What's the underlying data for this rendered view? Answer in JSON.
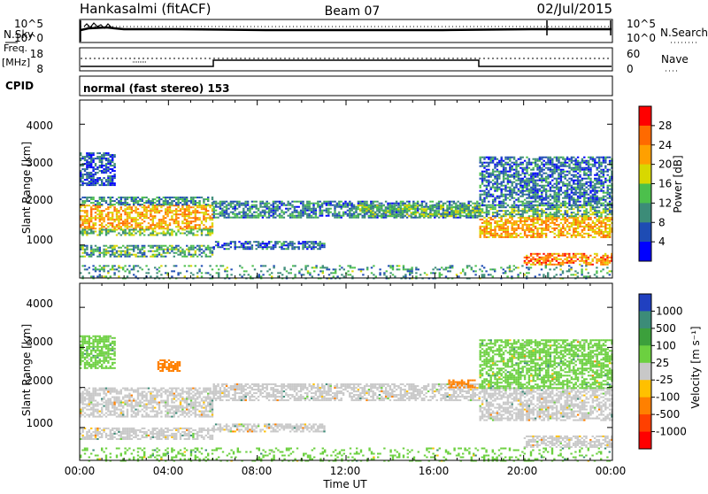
{
  "header": {
    "station": "Hankasalmi (fitACF)",
    "beam": "Beam 07",
    "date": "02/Jul/2015"
  },
  "top_strips": {
    "nsky_label": "N.Sky",
    "nsky_ticks": [
      "10^5",
      "10^0"
    ],
    "nsearch_label": "N.Search",
    "nsearch_ticks": [
      "10^5",
      "10^0"
    ],
    "freq_label_1": "Freq.",
    "freq_label_2": "[MHz]",
    "freq_ticks": [
      "18",
      "8"
    ],
    "nave_label": "Nave",
    "nave_ticks": [
      "60",
      "0"
    ],
    "cpid_label": "CPID",
    "cpid_text": "normal (fast stereo) 153"
  },
  "x_axis": {
    "label": "Time UT",
    "ticks": [
      "00:00",
      "04:00",
      "08:00",
      "12:00",
      "16:00",
      "20:00",
      "00:00"
    ]
  },
  "power_panel": {
    "ylabel": "Slant Range [km]",
    "yticks": [
      "4000",
      "3000",
      "2000",
      "1000"
    ],
    "cbar_label": "Power [dB]",
    "cbar_ticks": [
      "28",
      "24",
      "20",
      "16",
      "12",
      "8",
      "4"
    ],
    "cbar_colors": [
      "#ff0000",
      "#ff6a00",
      "#ffa000",
      "#d8d800",
      "#4cc04c",
      "#3c8c78",
      "#1e4cb4",
      "#0000ff"
    ]
  },
  "velocity_panel": {
    "ylabel": "Slant Range [km]",
    "yticks": [
      "4000",
      "3000",
      "2000",
      "1000"
    ],
    "cbar_label": "Velocity [m s⁻¹]",
    "cbar_ticks": [
      "1000",
      "500",
      "100",
      "25",
      "-25",
      "-100",
      "-500",
      "-1000"
    ],
    "cbar_colors": [
      "#2040c0",
      "#3c8c78",
      "#3ca03c",
      "#6cd040",
      "#c8c8c8",
      "#ffc000",
      "#ff8000",
      "#ff4000",
      "#ff0000"
    ]
  },
  "chart_data": [
    {
      "type": "heatmap",
      "title": "Power",
      "xlabel": "Time UT",
      "ylabel": "Slant Range [km]",
      "xlim": [
        0,
        24
      ],
      "ylim": [
        180,
        4600
      ],
      "colorbar": "Power [dB]",
      "colorbar_range": [
        0,
        32
      ],
      "bands": [
        {
          "t0": 0.0,
          "t1": 6.0,
          "r0": 1400,
          "r1": 2000,
          "level": 22
        },
        {
          "t0": 0.0,
          "t1": 6.0,
          "r0": 1250,
          "r1": 1400,
          "level": 14
        },
        {
          "t0": 0.0,
          "t1": 6.0,
          "r0": 2000,
          "r1": 2200,
          "level": 10
        },
        {
          "t0": 0.0,
          "t1": 1.6,
          "r0": 2500,
          "r1": 3300,
          "level": 6
        },
        {
          "t0": 0.0,
          "t1": 6.0,
          "r0": 700,
          "r1": 1000,
          "level": 12
        },
        {
          "t0": 6.0,
          "t1": 18.0,
          "r0": 1700,
          "r1": 2100,
          "level": 9
        },
        {
          "t0": 6.0,
          "t1": 11.0,
          "r0": 900,
          "r1": 1100,
          "level": 7
        },
        {
          "t0": 12.5,
          "t1": 18.0,
          "r0": 1700,
          "r1": 2000,
          "level": 14
        },
        {
          "t0": 18.0,
          "t1": 24.0,
          "r0": 1200,
          "r1": 1700,
          "level": 22
        },
        {
          "t0": 18.0,
          "t1": 24.0,
          "r0": 1700,
          "r1": 2000,
          "level": 12
        },
        {
          "t0": 18.0,
          "t1": 24.0,
          "r0": 2000,
          "r1": 3200,
          "level": 8
        },
        {
          "t0": 20.0,
          "t1": 24.0,
          "r0": 500,
          "r1": 800,
          "level": 24
        },
        {
          "t0": 0.0,
          "t1": 24.0,
          "r0": 180,
          "r1": 500,
          "level": 11
        }
      ]
    },
    {
      "type": "heatmap",
      "title": "Velocity",
      "xlabel": "Time UT",
      "ylabel": "Slant Range [km]",
      "xlim": [
        0,
        24
      ],
      "ylim": [
        180,
        4600
      ],
      "colorbar": "Velocity [m s⁻¹]",
      "colorbar_range": [
        -1000,
        1000
      ],
      "bands": [
        {
          "t0": 0.0,
          "t1": 6.0,
          "r0": 1250,
          "r1": 2000,
          "level": 0
        },
        {
          "t0": 0.0,
          "t1": 6.0,
          "r0": 700,
          "r1": 1000,
          "level": 0
        },
        {
          "t0": 0.0,
          "t1": 1.6,
          "r0": 2500,
          "r1": 3300,
          "level": 50
        },
        {
          "t0": 3.5,
          "t1": 4.5,
          "r0": 2400,
          "r1": 2700,
          "level": -300
        },
        {
          "t0": 6.0,
          "t1": 18.0,
          "r0": 1700,
          "r1": 2100,
          "level": 0
        },
        {
          "t0": 6.0,
          "t1": 11.0,
          "r0": 900,
          "r1": 1100,
          "level": 0
        },
        {
          "t0": 16.6,
          "t1": 17.8,
          "r0": 2000,
          "r1": 2200,
          "level": -300
        },
        {
          "t0": 18.0,
          "t1": 24.0,
          "r0": 1200,
          "r1": 2000,
          "level": 0
        },
        {
          "t0": 18.0,
          "t1": 24.0,
          "r0": 2000,
          "r1": 3200,
          "level": 30
        },
        {
          "t0": 20.0,
          "t1": 24.0,
          "r0": 500,
          "r1": 800,
          "level": 0
        },
        {
          "t0": 0.0,
          "t1": 24.0,
          "r0": 180,
          "r1": 500,
          "level": 80
        }
      ]
    }
  ]
}
